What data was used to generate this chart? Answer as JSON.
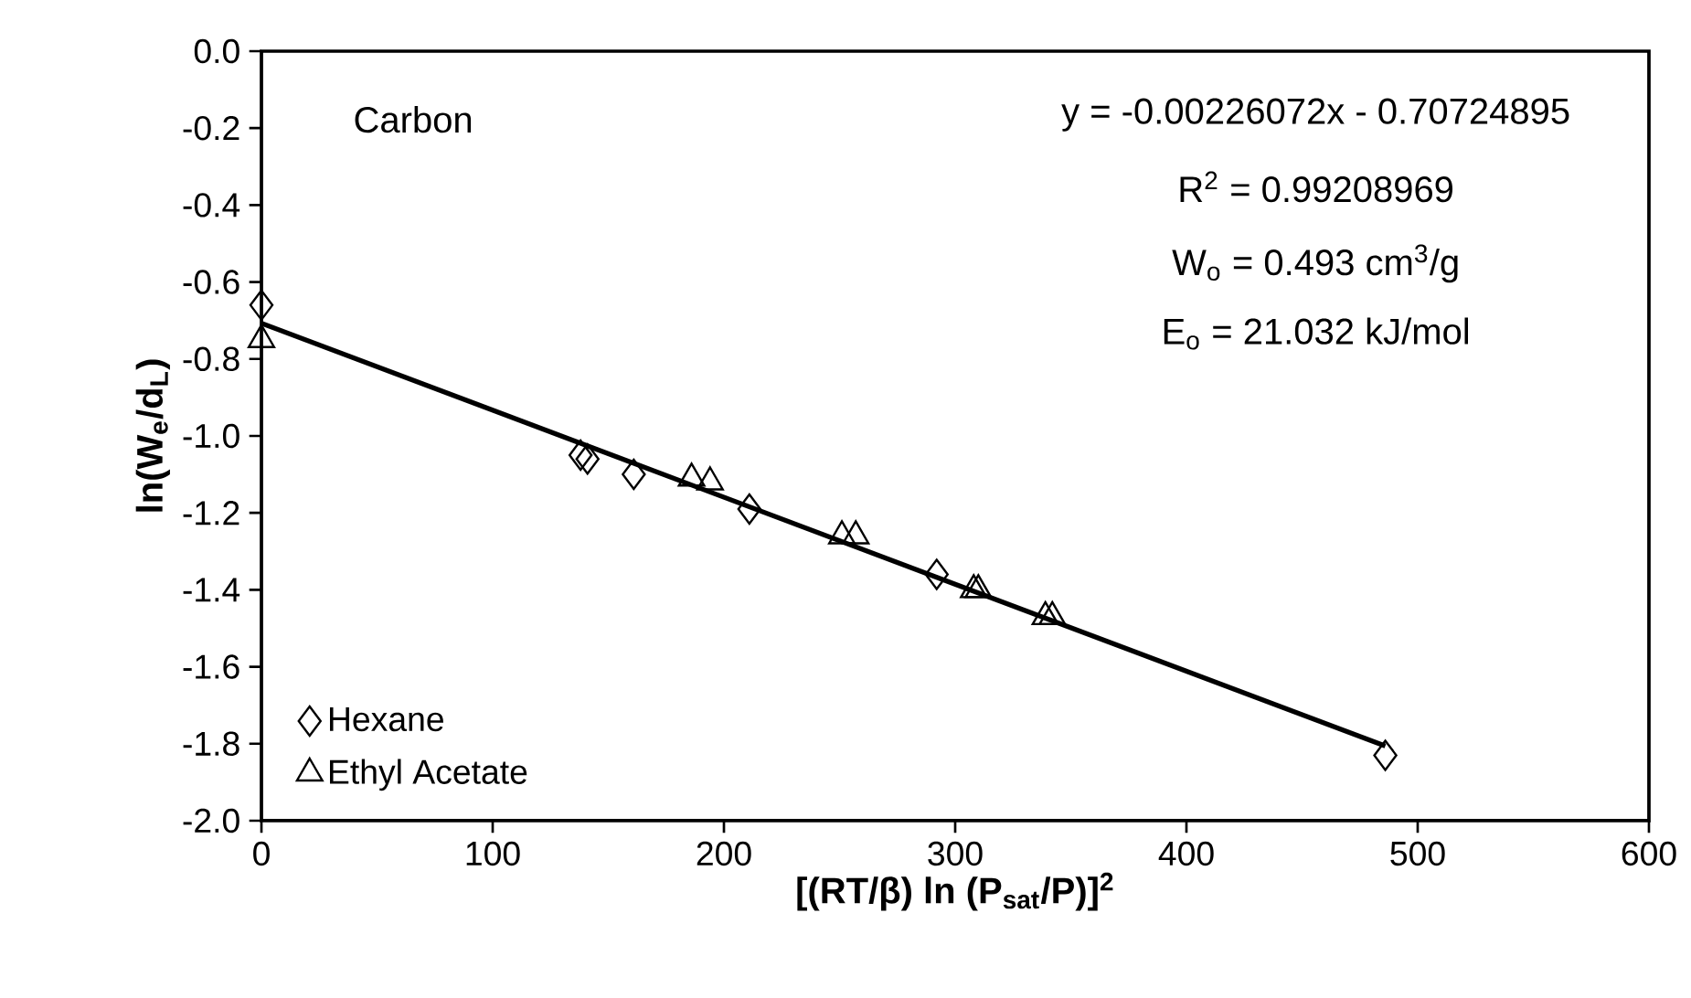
{
  "chart_data": {
    "type": "scatter",
    "xlabel": "[(RT/β) ln (P$_{sat}$/P)]$^{2}$",
    "ylabel": "ln(W$_{e}$/d$_{L}$)",
    "annotations": [
      "Carbon",
      "y = -0.00226072x - 0.70724895",
      "R$^{2}$ = 0.99208969",
      "W$_{o}$ = 0.493 cm$^{3}$/g",
      "E$_{o}$ = 21.032 kJ/mol"
    ],
    "xlim": [
      0,
      600
    ],
    "ylim": [
      -2.0,
      0.0
    ],
    "xticks": [
      0,
      100,
      200,
      300,
      400,
      500,
      600
    ],
    "yticks": [
      {
        "value": 0.0,
        "label": "0.0"
      },
      {
        "value": -0.2,
        "label": "-0.2"
      },
      {
        "value": -0.4,
        "label": "-0.4"
      },
      {
        "value": -0.6,
        "label": "-0.6"
      },
      {
        "value": -0.8,
        "label": "-0.8"
      },
      {
        "value": -1.0,
        "label": "-1.0"
      },
      {
        "value": -1.2,
        "label": "-1.2"
      },
      {
        "value": -1.4,
        "label": "-1.4"
      },
      {
        "value": -1.6,
        "label": "-1.6"
      },
      {
        "value": -1.8,
        "label": "-1.8"
      },
      {
        "value": -2.0,
        "label": "-2.0"
      }
    ],
    "legend": "bottom left",
    "series": [
      {
        "name": "Hexane",
        "color": "#000000",
        "marker": "diamond",
        "x": [
          0,
          138,
          141,
          161,
          211,
          292,
          486
        ],
        "values": [
          -0.66,
          -1.05,
          -1.06,
          -1.1,
          -1.19,
          -1.36,
          -1.83
        ]
      },
      {
        "name": "Ethyl Acetate",
        "color": "#000000",
        "marker": "triangle",
        "x": [
          0,
          186,
          194,
          251,
          257,
          308,
          310,
          339,
          342
        ],
        "values": [
          -0.75,
          -1.11,
          -1.12,
          -1.26,
          -1.26,
          -1.4,
          -1.4,
          -1.47,
          -1.47
        ]
      },
      {
        "type": "line",
        "color": "#000000",
        "marker": "none",
        "x": [
          0,
          486
        ],
        "values": [
          -0.707,
          -1.806
        ]
      }
    ]
  }
}
